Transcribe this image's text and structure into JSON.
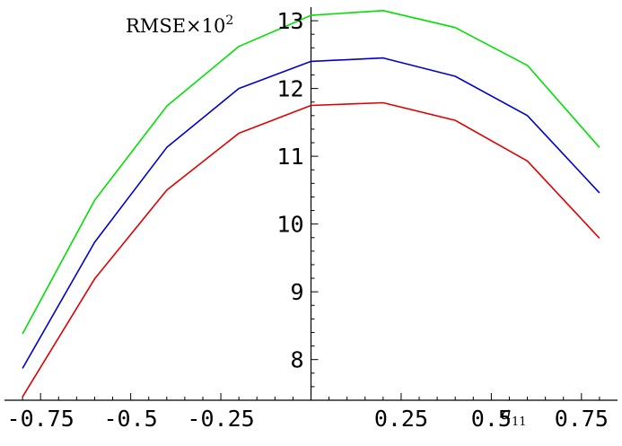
{
  "chart_data": {
    "type": "line",
    "ylabel": "RMSE×10",
    "ylabel_exp": "2",
    "xlabel": "a",
    "xlabel_sub": "11",
    "xlim": [
      -0.85,
      0.85
    ],
    "ylim": [
      7.4,
      13.2
    ],
    "x_ticks": [
      -0.75,
      -0.5,
      -0.25,
      0.25,
      0.5,
      0.75
    ],
    "x_tick_labels": [
      "-0.75",
      "-0.5",
      "-0.25",
      "0.25",
      "0.5",
      "0.75"
    ],
    "y_ticks": [
      8,
      9,
      10,
      11,
      12,
      13
    ],
    "y_tick_labels": [
      "8",
      "9",
      "10",
      "11",
      "12",
      "13"
    ],
    "x": [
      -0.8,
      -0.6,
      -0.4,
      -0.2,
      0.0,
      0.2,
      0.4,
      0.6,
      0.8
    ],
    "series": [
      {
        "color": "#00e000",
        "values": [
          8.38,
          10.35,
          11.74,
          12.62,
          13.08,
          13.15,
          12.9,
          12.34,
          11.13
        ]
      },
      {
        "color": "#0000cc",
        "values": [
          7.87,
          9.73,
          11.13,
          12.0,
          12.4,
          12.45,
          12.18,
          11.6,
          10.46
        ]
      },
      {
        "color": "#e00000",
        "values": [
          7.45,
          9.19,
          10.5,
          11.34,
          11.75,
          11.79,
          11.53,
          10.93,
          9.79
        ]
      }
    ]
  }
}
